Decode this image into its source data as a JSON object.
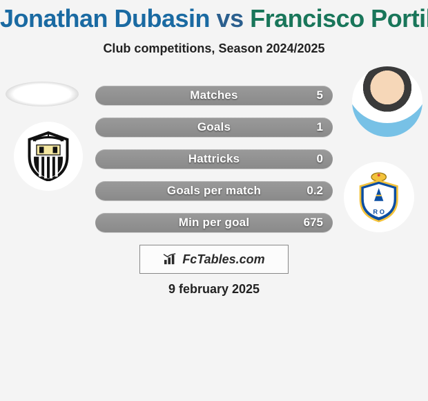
{
  "title": {
    "player1": "Jonathan Dubasin",
    "player2": "Francisco Portillo",
    "color1": "#1a6aa2",
    "color2": "#19765a",
    "vs": "vs",
    "vs_color": "#2b5f8e"
  },
  "subtitle": "Club competitions, Season 2024/2025",
  "stats": {
    "bar_bg_color": "#8f8f8f",
    "fill_color": "#c65a96",
    "items": [
      {
        "label": "Matches",
        "value": "5",
        "fill_pct": 0
      },
      {
        "label": "Goals",
        "value": "1",
        "fill_pct": 0
      },
      {
        "label": "Hattricks",
        "value": "0",
        "fill_pct": 0
      },
      {
        "label": "Goals per match",
        "value": "0.2",
        "fill_pct": 0
      },
      {
        "label": "Min per goal",
        "value": "675",
        "fill_pct": 0
      }
    ]
  },
  "brand": {
    "text": "FcTables.com",
    "icon": "bar-chart-icon"
  },
  "date": "9 february 2025",
  "avatars": {
    "left": {
      "name": "player-left-avatar"
    },
    "right": {
      "name": "player-right-avatar"
    }
  },
  "crests": {
    "left": {
      "name": "club-crest-left",
      "primary": "#111111",
      "secondary": "#ffffff"
    },
    "right": {
      "name": "club-crest-right",
      "primary": "#0b4ea2",
      "secondary": "#f3c23b"
    }
  },
  "colors": {
    "page_bg": "#f4f4f4",
    "text": "#222222"
  }
}
